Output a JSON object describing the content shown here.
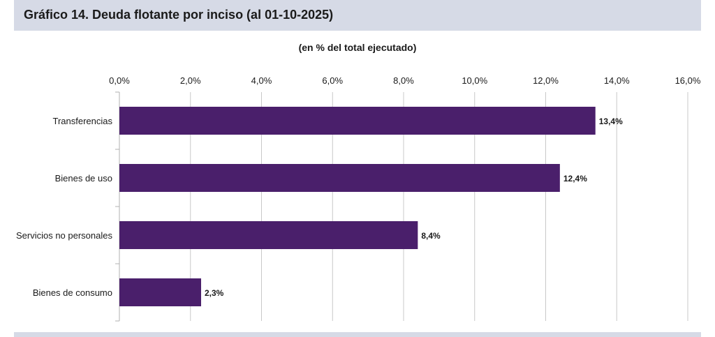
{
  "page": {
    "title": "Gráfico 14. Deuda flotante por inciso (al 01-10-2025)"
  },
  "colors": {
    "bar": "#4a1f6b",
    "title_bar": "#d6dae6",
    "grid": "#c8c8c8"
  },
  "chart_data": {
    "type": "bar",
    "orientation": "horizontal",
    "title": "(en % del total ejecutado)",
    "xlabel": "",
    "ylabel": "",
    "categories": [
      "Transferencias",
      "Bienes de uso",
      "Servicios no personales",
      "Bienes de consumo"
    ],
    "values": [
      13.4,
      12.4,
      8.4,
      2.3
    ],
    "value_labels": [
      "13,4%",
      "12,4%",
      "8,4%",
      "2,3%"
    ],
    "xlim": [
      0,
      16
    ],
    "ticks": [
      0,
      2,
      4,
      6,
      8,
      10,
      12,
      14,
      16
    ],
    "tick_labels": [
      "0,0%",
      "2,0%",
      "4,0%",
      "6,0%",
      "8,0%",
      "10,0%",
      "12,0%",
      "14,0%",
      "16,0%"
    ],
    "axis_position": "top",
    "grid": true,
    "legend": "none"
  }
}
